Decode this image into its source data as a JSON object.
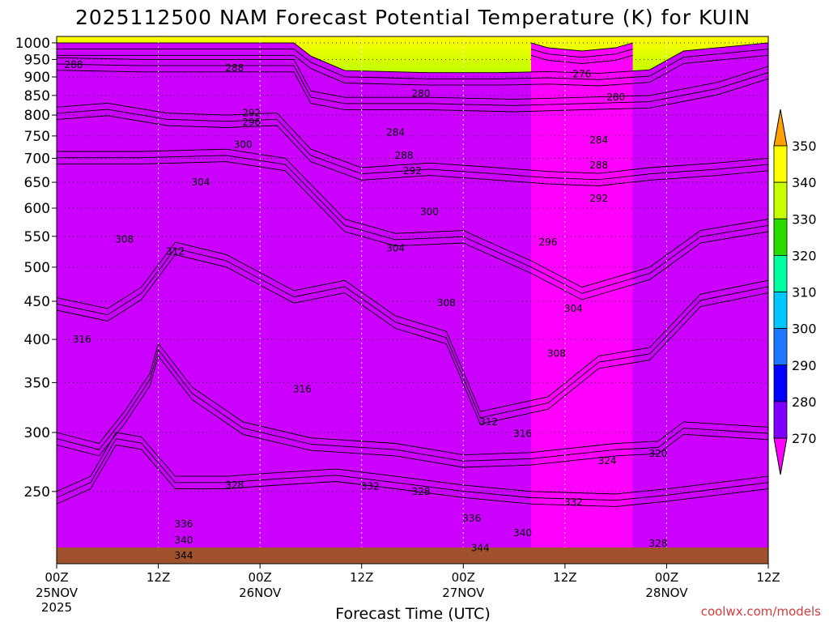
{
  "chart_data": {
    "type": "heatmap",
    "title": "2025112500 NAM Forecast Potential Temperature (K) for KUIN",
    "xlabel": "Forecast Time (UTC)",
    "ylabel": "",
    "x_ticks": [
      "00Z",
      "12Z",
      "00Z",
      "12Z",
      "00Z",
      "12Z",
      "00Z",
      "12Z"
    ],
    "x_tick_hours": [
      0,
      12,
      24,
      36,
      48,
      60,
      72,
      84
    ],
    "date_labels": [
      {
        "hour": 0,
        "text": "25NOV"
      },
      {
        "hour": 24,
        "text": "26NOV"
      },
      {
        "hour": 48,
        "text": "27NOV"
      },
      {
        "hour": 72,
        "text": "28NOV"
      }
    ],
    "year_label": "2025",
    "xlim": [
      0,
      84
    ],
    "y_ticks": [
      250,
      300,
      350,
      400,
      450,
      500,
      550,
      600,
      650,
      700,
      750,
      800,
      850,
      900,
      950,
      1000
    ],
    "ylim": [
      1020,
      200
    ],
    "y_scale": "log",
    "grid": true,
    "colorbar": {
      "levels": [
        270,
        280,
        290,
        300,
        310,
        320,
        330,
        340,
        350
      ],
      "labels": [
        "350",
        "340",
        "330",
        "320",
        "310",
        "300",
        "290",
        "280",
        "270"
      ],
      "colors": [
        "#ff00ff",
        "#cc00ff",
        "#8000ff",
        "#0000ff",
        "#1e78ff",
        "#00c8ff",
        "#00ffa0",
        "#28dc00",
        "#c8ff00",
        "#ffff00",
        "#ffa000"
      ],
      "placement": "right"
    },
    "contour_labels": [
      {
        "hour": 15,
        "p": 205,
        "text": "344"
      },
      {
        "hour": 15,
        "p": 215,
        "text": "340"
      },
      {
        "hour": 15,
        "p": 226,
        "text": "336"
      },
      {
        "hour": 21,
        "p": 255,
        "text": "328"
      },
      {
        "hour": 37,
        "p": 254,
        "text": "332"
      },
      {
        "hour": 43,
        "p": 250,
        "text": "328"
      },
      {
        "hour": 50,
        "p": 210,
        "text": "344"
      },
      {
        "hour": 55,
        "p": 220,
        "text": "340"
      },
      {
        "hour": 49,
        "p": 230,
        "text": "336"
      },
      {
        "hour": 61,
        "p": 242,
        "text": "332"
      },
      {
        "hour": 65,
        "p": 275,
        "text": "324"
      },
      {
        "hour": 71,
        "p": 213,
        "text": "328"
      },
      {
        "hour": 71,
        "p": 281,
        "text": "320"
      },
      {
        "hour": 55,
        "p": 299,
        "text": "316"
      },
      {
        "hour": 51,
        "p": 310,
        "text": "312"
      },
      {
        "hour": 29,
        "p": 343,
        "text": "316"
      },
      {
        "hour": 3,
        "p": 400,
        "text": "316"
      },
      {
        "hour": 59,
        "p": 383,
        "text": "308"
      },
      {
        "hour": 46,
        "p": 448,
        "text": "308"
      },
      {
        "hour": 61,
        "p": 440,
        "text": "304"
      },
      {
        "hour": 14,
        "p": 525,
        "text": "312"
      },
      {
        "hour": 8,
        "p": 545,
        "text": "308"
      },
      {
        "hour": 40,
        "p": 530,
        "text": "304"
      },
      {
        "hour": 58,
        "p": 540,
        "text": "296"
      },
      {
        "hour": 44,
        "p": 593,
        "text": "300"
      },
      {
        "hour": 64,
        "p": 618,
        "text": "292"
      },
      {
        "hour": 17,
        "p": 650,
        "text": "304"
      },
      {
        "hour": 42,
        "p": 673,
        "text": "292"
      },
      {
        "hour": 41,
        "p": 706,
        "text": "288"
      },
      {
        "hour": 64,
        "p": 685,
        "text": "288"
      },
      {
        "hour": 22,
        "p": 730,
        "text": "300"
      },
      {
        "hour": 23,
        "p": 782,
        "text": "296"
      },
      {
        "hour": 23,
        "p": 805,
        "text": "292"
      },
      {
        "hour": 40,
        "p": 758,
        "text": "284"
      },
      {
        "hour": 64,
        "p": 740,
        "text": "284"
      },
      {
        "hour": 43,
        "p": 855,
        "text": "280"
      },
      {
        "hour": 66,
        "p": 845,
        "text": "280"
      },
      {
        "hour": 62,
        "p": 908,
        "text": "276"
      },
      {
        "hour": 21,
        "p": 925,
        "text": "288"
      },
      {
        "hour": 2,
        "p": 935,
        "text": "288"
      }
    ]
  },
  "credit": "coolwx.com/models"
}
